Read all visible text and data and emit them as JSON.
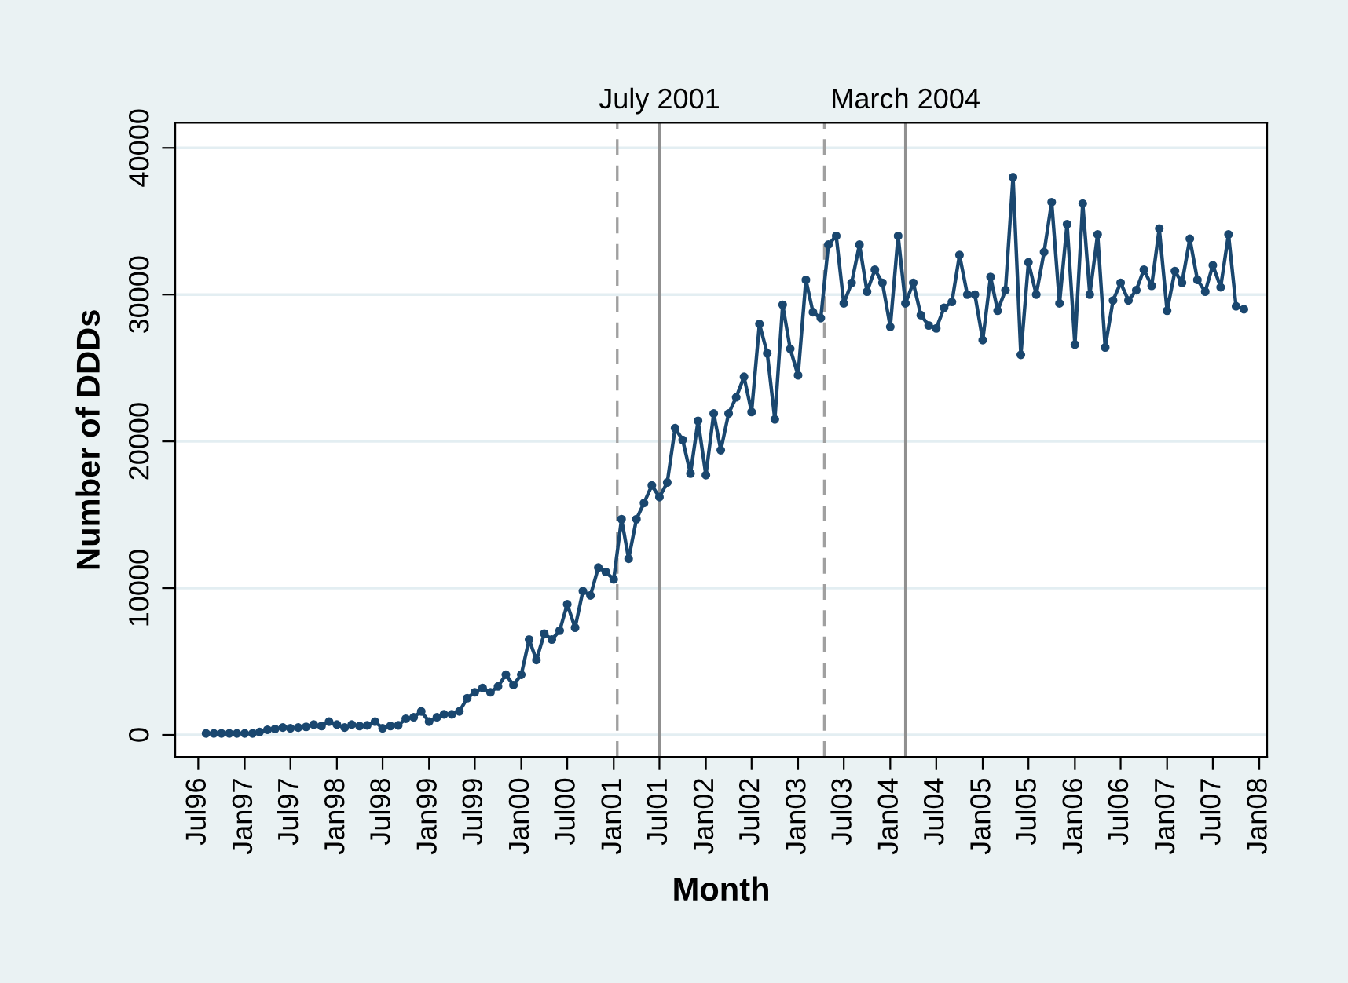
{
  "chart_data": {
    "type": "line",
    "xlabel": "Month",
    "ylabel": "Number of DDDs",
    "x": [
      "1996-08",
      "1996-09",
      "1996-10",
      "1996-11",
      "1996-12",
      "1997-01",
      "1997-02",
      "1997-03",
      "1997-04",
      "1997-05",
      "1997-06",
      "1997-07",
      "1997-08",
      "1997-09",
      "1997-10",
      "1997-11",
      "1997-12",
      "1998-01",
      "1998-02",
      "1998-03",
      "1998-04",
      "1998-05",
      "1998-06",
      "1998-07",
      "1998-08",
      "1998-09",
      "1998-10",
      "1998-11",
      "1998-12",
      "1999-01",
      "1999-02",
      "1999-03",
      "1999-04",
      "1999-05",
      "1999-06",
      "1999-07",
      "1999-08",
      "1999-09",
      "1999-10",
      "1999-11",
      "1999-12",
      "2000-01",
      "2000-02",
      "2000-03",
      "2000-04",
      "2000-05",
      "2000-06",
      "2000-07",
      "2000-08",
      "2000-09",
      "2000-10",
      "2000-11",
      "2000-12",
      "2001-01",
      "2001-02",
      "2001-03",
      "2001-04",
      "2001-05",
      "2001-06",
      "2001-07",
      "2001-08",
      "2001-09",
      "2001-10",
      "2001-11",
      "2001-12",
      "2002-01",
      "2002-02",
      "2002-03",
      "2002-04",
      "2002-05",
      "2002-06",
      "2002-07",
      "2002-08",
      "2002-09",
      "2002-10",
      "2002-11",
      "2002-12",
      "2003-01",
      "2003-02",
      "2003-03",
      "2003-04",
      "2003-05",
      "2003-06",
      "2003-07",
      "2003-08",
      "2003-09",
      "2003-10",
      "2003-11",
      "2003-12",
      "2004-01",
      "2004-02",
      "2004-03",
      "2004-04",
      "2004-05",
      "2004-06",
      "2004-07",
      "2004-08",
      "2004-09",
      "2004-10",
      "2004-11",
      "2004-12",
      "2005-01",
      "2005-02",
      "2005-03",
      "2005-04",
      "2005-05",
      "2005-06",
      "2005-07",
      "2005-08",
      "2005-09",
      "2005-10",
      "2005-11",
      "2005-12",
      "2006-01",
      "2006-02",
      "2006-03",
      "2006-04",
      "2006-05",
      "2006-06",
      "2006-07",
      "2006-08",
      "2006-09",
      "2006-10",
      "2006-11",
      "2006-12",
      "2007-01",
      "2007-02",
      "2007-03",
      "2007-04",
      "2007-05",
      "2007-06",
      "2007-07",
      "2007-08",
      "2007-09",
      "2007-10",
      "2007-11"
    ],
    "series": [
      {
        "color": "#1a476f",
        "values": [
          100,
          100,
          100,
          100,
          100,
          100,
          100,
          200,
          350,
          400,
          500,
          450,
          500,
          550,
          700,
          600,
          900,
          700,
          500,
          700,
          600,
          650,
          900,
          450,
          600,
          650,
          1100,
          1200,
          1600,
          900,
          1200,
          1400,
          1400,
          1600,
          2500,
          2900,
          3200,
          2900,
          3300,
          4100,
          3400,
          4100,
          6500,
          5100,
          6900,
          6500,
          7100,
          8900,
          7300,
          9800,
          9500,
          11400,
          11100,
          10600,
          14700,
          12000,
          14700,
          15800,
          17000,
          16200,
          17200,
          20900,
          20100,
          17800,
          21400,
          17700,
          21900,
          19400,
          21900,
          23000,
          24400,
          22000,
          28000,
          26000,
          21500,
          29300,
          26300,
          24500,
          31000,
          28800,
          28400,
          33400,
          34000,
          29400,
          30800,
          33400,
          30200,
          31700,
          30800,
          27800,
          34000,
          29400,
          30800,
          28600,
          27900,
          27700,
          29100,
          29500,
          32700,
          30000,
          30000,
          26900,
          31200,
          28900,
          30300,
          38000,
          25900,
          32200,
          30000,
          32900,
          36300,
          29400,
          34800,
          26600,
          36200,
          30000,
          34100,
          26400,
          29600,
          30800,
          29600,
          30300,
          31700,
          30600,
          34500,
          28900,
          31600,
          30800,
          33800,
          31000,
          30200,
          32000,
          30500,
          34100,
          29200,
          29000
        ]
      }
    ],
    "marker": "circle",
    "line_style": "solid",
    "grid": "y",
    "legend": false,
    "xlim": [
      "1996-04",
      "2008-02"
    ],
    "xticks": [
      {
        "value": "1996-07",
        "label": "Jul96"
      },
      {
        "value": "1997-01",
        "label": "Jan97"
      },
      {
        "value": "1997-07",
        "label": "Jul97"
      },
      {
        "value": "1998-01",
        "label": "Jan98"
      },
      {
        "value": "1998-07",
        "label": "Jul98"
      },
      {
        "value": "1999-01",
        "label": "Jan99"
      },
      {
        "value": "1999-07",
        "label": "Jul99"
      },
      {
        "value": "2000-01",
        "label": "Jan00"
      },
      {
        "value": "2000-07",
        "label": "Jul00"
      },
      {
        "value": "2001-01",
        "label": "Jan01"
      },
      {
        "value": "2001-07",
        "label": "Jul01"
      },
      {
        "value": "2002-01",
        "label": "Jan02"
      },
      {
        "value": "2002-07",
        "label": "Jul02"
      },
      {
        "value": "2003-01",
        "label": "Jan03"
      },
      {
        "value": "2003-07",
        "label": "Jul03"
      },
      {
        "value": "2004-01",
        "label": "Jan04"
      },
      {
        "value": "2004-07",
        "label": "Jul04"
      },
      {
        "value": "2005-01",
        "label": "Jan05"
      },
      {
        "value": "2005-07",
        "label": "Jul05"
      },
      {
        "value": "2006-01",
        "label": "Jan06"
      },
      {
        "value": "2006-07",
        "label": "Jul06"
      },
      {
        "value": "2007-01",
        "label": "Jan07"
      },
      {
        "value": "2007-07",
        "label": "Jul07"
      },
      {
        "value": "2008-01",
        "label": "Jan08"
      }
    ],
    "ylim": [
      -1500,
      41700
    ],
    "yticks": [
      0,
      10000,
      20000,
      30000,
      40000
    ],
    "ref_lines": [
      {
        "axis": "x",
        "value": "2001-01-15",
        "label": null,
        "color": "#a0a0a0",
        "line_style": "dashed"
      },
      {
        "axis": "x",
        "value": "2001-07",
        "label": "July 2001",
        "color": "#909090",
        "line_style": "solid"
      },
      {
        "axis": "x",
        "value": "2003-04-15",
        "label": null,
        "color": "#a0a0a0",
        "line_style": "dashed"
      },
      {
        "axis": "x",
        "value": "2004-03",
        "label": "March 2004",
        "color": "#909090",
        "line_style": "solid"
      }
    ]
  }
}
